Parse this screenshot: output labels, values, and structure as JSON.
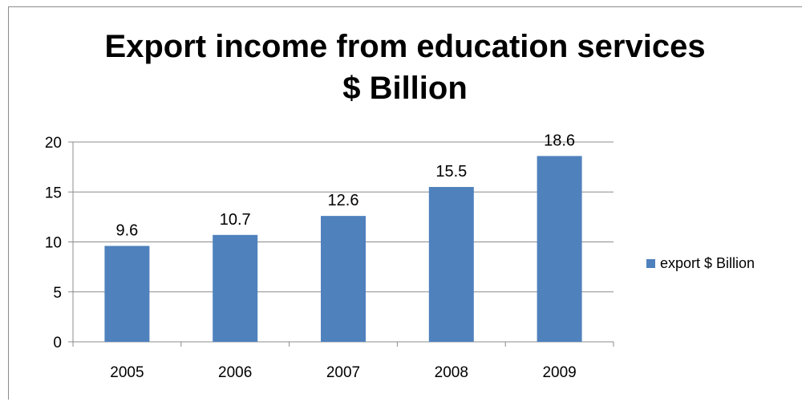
{
  "chart_data": {
    "type": "bar",
    "title_line1": "Export income from education services",
    "title_line2": "$ Billion",
    "categories": [
      "2005",
      "2006",
      "2007",
      "2008",
      "2009"
    ],
    "series": [
      {
        "name": "export $ Billion",
        "values": [
          9.6,
          10.7,
          12.6,
          15.5,
          18.6
        ]
      }
    ],
    "data_labels": [
      "9.6",
      "10.7",
      "12.6",
      "15.5",
      "18.6"
    ],
    "ylim": [
      0,
      20
    ],
    "yticks": [
      "0",
      "5",
      "10",
      "15",
      "20"
    ],
    "grid": true,
    "legend_position": "right",
    "bar_color": "#4F81BD"
  }
}
